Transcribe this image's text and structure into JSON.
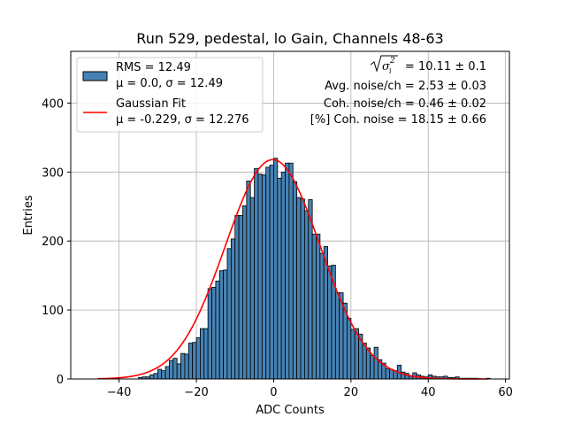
{
  "chart_data": {
    "type": "bar",
    "title": "Run 529, pedestal, lo Gain, Channels 48-63",
    "xlabel": "ADC Counts",
    "ylabel": "Entries",
    "xlim": [
      -52.5,
      61
    ],
    "ylim": [
      0,
      475
    ],
    "xticks": [
      -40,
      -20,
      0,
      20,
      40,
      60
    ],
    "xtick_labels": [
      "−40",
      "−20",
      "0",
      "20",
      "40",
      "60"
    ],
    "yticks": [
      0,
      100,
      200,
      300,
      400
    ],
    "ytick_labels": [
      "0",
      "100",
      "200",
      "300",
      "400"
    ],
    "grid": true,
    "bar_color": "#4682b4",
    "bar_edge_color": "#000000",
    "fit_color": "#ff0000",
    "histogram": {
      "bin_width": 1,
      "bin_starts": [
        -35,
        -34,
        -33,
        -32,
        -31,
        -30,
        -29,
        -28,
        -27,
        -26,
        -25,
        -24,
        -23,
        -22,
        -21,
        -20,
        -19,
        -18,
        -17,
        -16,
        -15,
        -14,
        -13,
        -12,
        -11,
        -10,
        -9,
        -8,
        -7,
        -6,
        -5,
        -4,
        -3,
        -2,
        -1,
        0,
        1,
        2,
        3,
        4,
        5,
        6,
        7,
        8,
        9,
        10,
        11,
        12,
        13,
        14,
        15,
        16,
        17,
        18,
        19,
        20,
        21,
        22,
        23,
        24,
        25,
        26,
        27,
        28,
        29,
        30,
        31,
        32,
        33,
        34,
        35,
        36,
        37,
        38,
        39,
        40,
        41,
        42,
        43,
        44,
        45,
        46,
        47,
        48,
        49,
        50,
        51,
        52,
        53,
        54,
        55
      ],
      "counts": [
        2,
        3,
        3,
        6,
        8,
        14,
        12,
        18,
        27,
        30,
        22,
        37,
        36,
        52,
        53,
        60,
        73,
        73,
        131,
        133,
        142,
        157,
        158,
        189,
        203,
        237,
        237,
        251,
        287,
        263,
        305,
        297,
        296,
        307,
        310,
        320,
        291,
        300,
        313,
        313,
        286,
        263,
        261,
        244,
        260,
        210,
        210,
        182,
        192,
        164,
        165,
        125,
        125,
        110,
        88,
        72,
        73,
        65,
        52,
        45,
        34,
        46,
        28,
        23,
        15,
        14,
        12,
        20,
        10,
        8,
        4,
        9,
        6,
        4,
        3,
        6,
        4,
        3,
        3,
        4,
        2,
        2,
        3,
        1,
        1,
        1,
        1,
        1,
        0,
        0,
        1
      ]
    },
    "gaussian_fit": {
      "mu": -0.229,
      "sigma": 12.276,
      "amplitude": 318,
      "x_range": [
        -45.5,
        55.5
      ]
    },
    "legend": {
      "position": "upper-left",
      "entries": [
        {
          "line1": "RMS = 12.49",
          "line2": "μ = 0.0, σ = 12.49",
          "kind": "patch"
        },
        {
          "line1": "Gaussian Fit",
          "line2": "μ = -0.229, σ = 12.276",
          "kind": "line"
        }
      ]
    },
    "annotations": {
      "sqrt_sigma_value": " = 10.11 ± 0.1",
      "avg_noise": "Avg. noise/ch = 2.53 ± 0.03",
      "coh_noise": "Coh. noise/ch = 0.46 ± 0.02",
      "pct_coh_noise": "[%] Coh. noise = 18.15 ± 0.66"
    }
  }
}
